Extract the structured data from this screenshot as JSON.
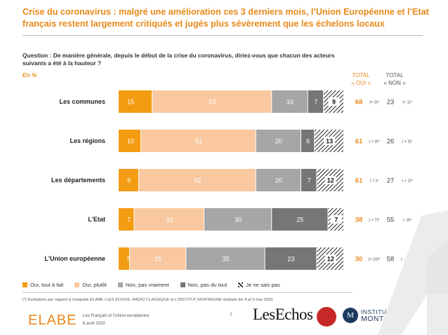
{
  "title": "Crise du coronavirus : malgré une amélioration ces 3 derniers mois, l’Union Européenne et l’Etat français restent largement critiqués et jugés plus sévèrement que les échelons locaux",
  "question": "Question : De manière générale, depuis le début de la crise du coronavirus, diriez-vous que chacun des acteurs suivants a été à la hauteur ?",
  "unit": "En %",
  "totals_header": {
    "oui_line1": "TOTAL",
    "oui_line2": "« OUI »",
    "non_line1": "TOTAL",
    "non_line2": "« NON »"
  },
  "colors": {
    "oui_tout_a_fait": "#f39c12",
    "oui_plutot": "#f9c8a0",
    "non_pas_vraiment": "#a6a6a6",
    "non_pas_du_tout": "#767676",
    "ne_sais_pas": "hatched",
    "accent": "#e88a1a"
  },
  "chart_data": {
    "type": "bar",
    "orientation": "horizontal",
    "stacked": true,
    "percent_scale": true,
    "categories": [
      "Les communes",
      "Les régions",
      "Les départements",
      "L'Etat",
      "L'Union européenne"
    ],
    "series": [
      {
        "name": "Oui, tout à fait",
        "values": [
          15,
          10,
          9,
          7,
          5
        ]
      },
      {
        "name": "Oui, plutôt",
        "values": [
          53,
          51,
          52,
          31,
          25
        ]
      },
      {
        "name": "Non, pas vraiment",
        "values": [
          16,
          20,
          20,
          30,
          35
        ]
      },
      {
        "name": "Non, pas du tout",
        "values": [
          7,
          6,
          7,
          25,
          23
        ]
      },
      {
        "name": "Je ne sais pas",
        "values": [
          9,
          13,
          12,
          7,
          12
        ]
      }
    ],
    "total_oui": [
      68,
      61,
      61,
      38,
      30
    ],
    "evolution_oui": [
      "(+ 2)*",
      "( + 3)*",
      "( = )*",
      "( + 7)*",
      "(+ 10)*"
    ],
    "total_non": [
      23,
      26,
      27,
      55,
      58
    ],
    "evolution_non": [
      "(+ 1)*",
      "( + 3)*",
      "( + 1)*",
      "( -9)*",
      "( - 11 )*"
    ],
    "legend_position": "bottom"
  },
  "footnote": "(*) Evolutions par rapport à l’enquête ELABE / LES ECHOS, RADIO CLASSIQUE et L’INSTITUT MONTAIGNE réalisée les 4 et 5 mai 2020.",
  "footer": {
    "logo_elabe": "ELABE",
    "report_title": "Les Français et l’Union européenne",
    "report_date": "6 août 2020",
    "page_number": "7",
    "logo_lesechos": "LesEchos",
    "logo_montaigne_mark": "M",
    "logo_montaigne_line1": "INSTITUT",
    "logo_montaigne_line2": "MONTAIGNE"
  }
}
